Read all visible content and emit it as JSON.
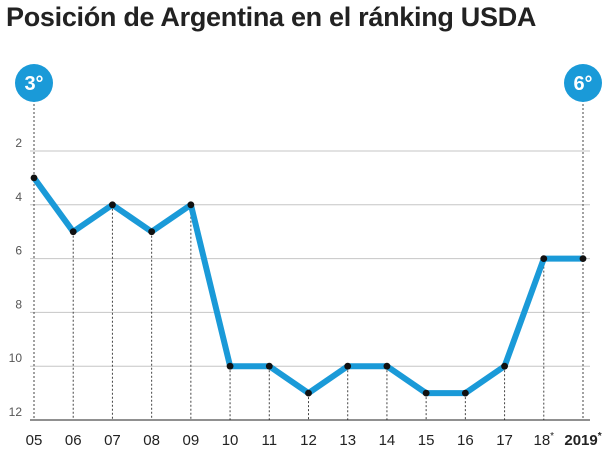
{
  "title": "Posición de Argentina en el ránking USDA",
  "chart_data": {
    "type": "line",
    "title": "Posición de Argentina en el ránking USDA",
    "xlabel": "",
    "ylabel": "",
    "ylim": [
      12,
      1
    ],
    "y_ticks": [
      2,
      4,
      6,
      8,
      10,
      12
    ],
    "grid": true,
    "series": [
      {
        "name": "Posición",
        "color": "#1a9ad8",
        "x": [
          "05",
          "06",
          "07",
          "08",
          "09",
          "10",
          "11",
          "12",
          "13",
          "14",
          "15",
          "16",
          "17",
          "18*",
          "2019*"
        ],
        "values": [
          3,
          5,
          4,
          5,
          4,
          10,
          10,
          11,
          10,
          10,
          11,
          11,
          10,
          6,
          6
        ]
      }
    ],
    "x_tick_labels": [
      {
        "text": "05"
      },
      {
        "text": "06"
      },
      {
        "text": "07"
      },
      {
        "text": "08"
      },
      {
        "text": "09"
      },
      {
        "text": "10"
      },
      {
        "text": "11"
      },
      {
        "text": "12"
      },
      {
        "text": "13"
      },
      {
        "text": "14"
      },
      {
        "text": "15"
      },
      {
        "text": "16"
      },
      {
        "text": "17"
      },
      {
        "text": "18",
        "sup": "*"
      },
      {
        "text": "2019",
        "sup": "*",
        "bold": true
      }
    ],
    "annotations": [
      {
        "label": "3°",
        "at": "05"
      },
      {
        "label": "6°",
        "at": "2019*"
      }
    ]
  }
}
